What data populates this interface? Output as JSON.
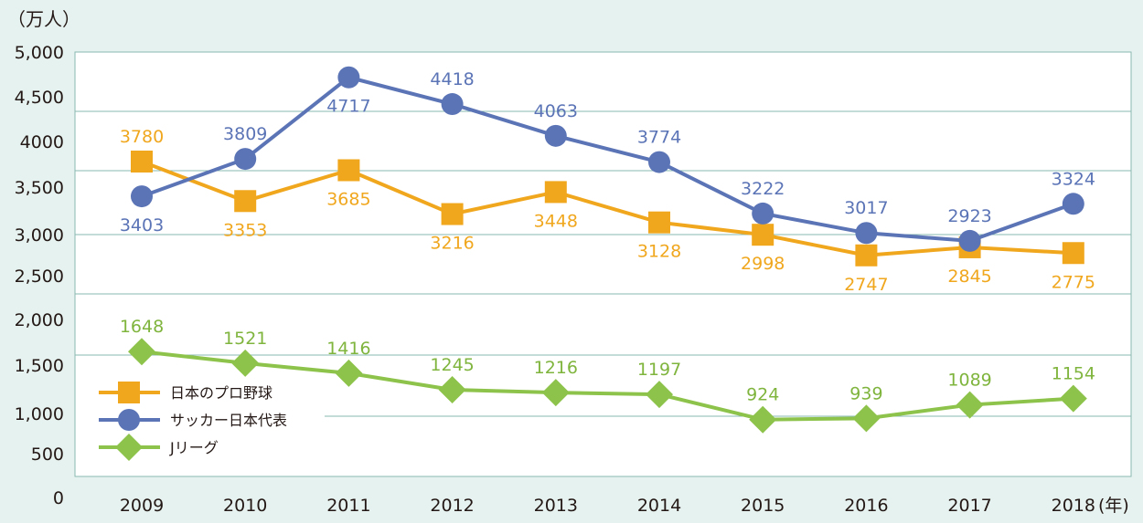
{
  "chart_data": {
    "type": "line",
    "unit_label": "（万人）",
    "x_unit_label": "(年)",
    "categories": [
      "2009",
      "2010",
      "2011",
      "2012",
      "2013",
      "2014",
      "2015",
      "2016",
      "2017",
      "2018"
    ],
    "y_tick_labels": [
      "0",
      "500",
      "1,000",
      "1,500",
      "2,000",
      "2,500",
      "3,000",
      "3,500",
      "4000",
      "4,500",
      "5,000"
    ],
    "series": [
      {
        "name": "日本のプロ野球",
        "marker": "square",
        "color": "#f0a71e",
        "label_color": "#f0a71e",
        "values": [
          3780,
          3353,
          3685,
          3216,
          3448,
          3128,
          2998,
          2747,
          2845,
          2775
        ]
      },
      {
        "name": "サッカー日本代表",
        "marker": "circle",
        "color": "#5b74b6",
        "label_color": "#5b74b6",
        "values": [
          3403,
          3809,
          4717,
          4418,
          4063,
          3774,
          3222,
          3017,
          2923,
          3324
        ]
      },
      {
        "name": "Jリーグ",
        "marker": "diamond",
        "color": "#8dc34a",
        "label_color": "#7fb43d",
        "values": [
          1648,
          1521,
          1416,
          1245,
          1216,
          1197,
          924,
          939,
          1089,
          1154
        ]
      }
    ],
    "grid": true,
    "legend_position": "lower-left"
  }
}
